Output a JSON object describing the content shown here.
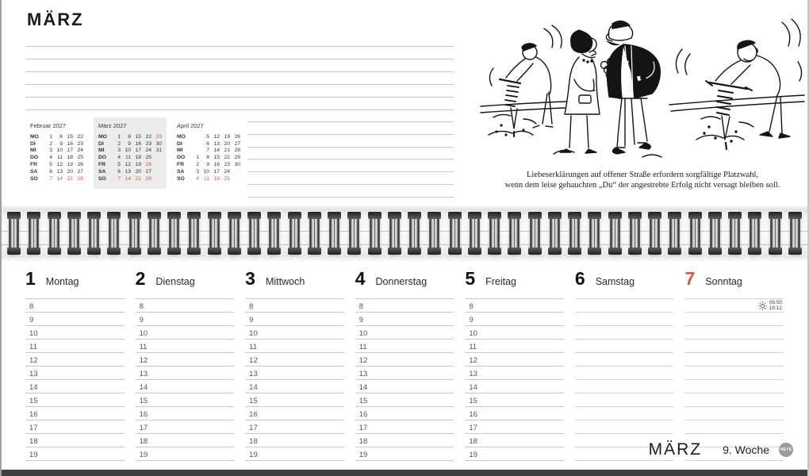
{
  "accent_red": "#cd5c49",
  "page": {
    "top_title": "MÄRZ",
    "footer_month": "MÄRZ",
    "footer_week": "9. Woche",
    "brand": "HEYE"
  },
  "cartoon": {
    "caption1": "Liebeserklärungen auf offener Straße erfordern sorgfältige Platzwahl,",
    "caption2": "wenn dem leise gehauchten „Du“ der angestrebte Erfolg nicht versagt bleiben soll."
  },
  "mini_calendars": [
    {
      "title": "Februar 2027",
      "highlight": false,
      "rows": [
        {
          "label": "MO",
          "cells": [
            {
              "v": "1"
            },
            {
              "v": "8"
            },
            {
              "v": "15"
            },
            {
              "v": "22"
            }
          ]
        },
        {
          "label": "DI",
          "cells": [
            {
              "v": "2"
            },
            {
              "v": "9"
            },
            {
              "v": "16"
            },
            {
              "v": "23"
            }
          ]
        },
        {
          "label": "MI",
          "cells": [
            {
              "v": "3"
            },
            {
              "v": "10"
            },
            {
              "v": "17"
            },
            {
              "v": "24"
            }
          ]
        },
        {
          "label": "DO",
          "cells": [
            {
              "v": "4"
            },
            {
              "v": "11"
            },
            {
              "v": "18"
            },
            {
              "v": "25"
            }
          ]
        },
        {
          "label": "FR",
          "cells": [
            {
              "v": "5"
            },
            {
              "v": "12"
            },
            {
              "v": "19"
            },
            {
              "v": "26"
            }
          ]
        },
        {
          "label": "SA",
          "cells": [
            {
              "v": "6"
            },
            {
              "v": "13"
            },
            {
              "v": "20"
            },
            {
              "v": "27"
            }
          ]
        },
        {
          "label": "SO",
          "cells": [
            {
              "v": "7",
              "red": true
            },
            {
              "v": "14",
              "red": true
            },
            {
              "v": "21",
              "red": true
            },
            {
              "v": "28",
              "red": true
            }
          ]
        }
      ]
    },
    {
      "title": "März 2027",
      "highlight": true,
      "rows": [
        {
          "label": "MO",
          "cells": [
            {
              "v": "1"
            },
            {
              "v": "8"
            },
            {
              "v": "15"
            },
            {
              "v": "22"
            },
            {
              "v": "29",
              "red": true
            }
          ]
        },
        {
          "label": "DI",
          "cells": [
            {
              "v": "2"
            },
            {
              "v": "9"
            },
            {
              "v": "16"
            },
            {
              "v": "23"
            },
            {
              "v": "30"
            }
          ]
        },
        {
          "label": "MI",
          "cells": [
            {
              "v": "3"
            },
            {
              "v": "10"
            },
            {
              "v": "17"
            },
            {
              "v": "24"
            },
            {
              "v": "31"
            }
          ]
        },
        {
          "label": "DO",
          "cells": [
            {
              "v": "4"
            },
            {
              "v": "11"
            },
            {
              "v": "18"
            },
            {
              "v": "25"
            },
            {
              "v": ""
            }
          ]
        },
        {
          "label": "FR",
          "cells": [
            {
              "v": "5"
            },
            {
              "v": "12"
            },
            {
              "v": "19"
            },
            {
              "v": "26",
              "red": true
            },
            {
              "v": ""
            }
          ]
        },
        {
          "label": "SA",
          "cells": [
            {
              "v": "6"
            },
            {
              "v": "13"
            },
            {
              "v": "20"
            },
            {
              "v": "27"
            },
            {
              "v": ""
            }
          ]
        },
        {
          "label": "SO",
          "cells": [
            {
              "v": "7",
              "red": true
            },
            {
              "v": "14",
              "red": true
            },
            {
              "v": "21",
              "red": true
            },
            {
              "v": "28",
              "red": true
            },
            {
              "v": ""
            }
          ]
        }
      ]
    },
    {
      "title": "April 2027",
      "highlight": false,
      "rows": [
        {
          "label": "MO",
          "cells": [
            {
              "v": ""
            },
            {
              "v": "5"
            },
            {
              "v": "12"
            },
            {
              "v": "19"
            },
            {
              "v": "26"
            }
          ]
        },
        {
          "label": "DI",
          "cells": [
            {
              "v": ""
            },
            {
              "v": "6"
            },
            {
              "v": "13"
            },
            {
              "v": "20"
            },
            {
              "v": "27"
            }
          ]
        },
        {
          "label": "MI",
          "cells": [
            {
              "v": ""
            },
            {
              "v": "7"
            },
            {
              "v": "14"
            },
            {
              "v": "21"
            },
            {
              "v": "28"
            }
          ]
        },
        {
          "label": "DO",
          "cells": [
            {
              "v": "1"
            },
            {
              "v": "8"
            },
            {
              "v": "15"
            },
            {
              "v": "22"
            },
            {
              "v": "29"
            }
          ]
        },
        {
          "label": "FR",
          "cells": [
            {
              "v": "2"
            },
            {
              "v": "9"
            },
            {
              "v": "16"
            },
            {
              "v": "23"
            },
            {
              "v": "30"
            }
          ]
        },
        {
          "label": "SA",
          "cells": [
            {
              "v": "3"
            },
            {
              "v": "10"
            },
            {
              "v": "17"
            },
            {
              "v": "24"
            },
            {
              "v": ""
            }
          ]
        },
        {
          "label": "SO",
          "cells": [
            {
              "v": "4",
              "red": true
            },
            {
              "v": "11",
              "red": true
            },
            {
              "v": "18",
              "red": true
            },
            {
              "v": "25",
              "red": true
            },
            {
              "v": ""
            }
          ]
        }
      ]
    }
  ],
  "week": {
    "hour_labels": [
      "8",
      "9",
      "10",
      "11",
      "12",
      "13",
      "14",
      "15",
      "16",
      "17",
      "18",
      "19"
    ],
    "days": [
      {
        "num": "1",
        "name": "Montag",
        "red": false,
        "show_hours": true
      },
      {
        "num": "2",
        "name": "Dienstag",
        "red": false,
        "show_hours": true
      },
      {
        "num": "3",
        "name": "Mittwoch",
        "red": false,
        "show_hours": true
      },
      {
        "num": "4",
        "name": "Donnerstag",
        "red": false,
        "show_hours": true
      },
      {
        "num": "5",
        "name": "Freitag",
        "red": false,
        "show_hours": true
      },
      {
        "num": "6",
        "name": "Samstag",
        "red": false,
        "show_hours": false
      },
      {
        "num": "7",
        "name": "Sonntag",
        "red": true,
        "show_hours": false,
        "sun": {
          "rise": "06:55",
          "set": "18:12"
        }
      }
    ]
  }
}
